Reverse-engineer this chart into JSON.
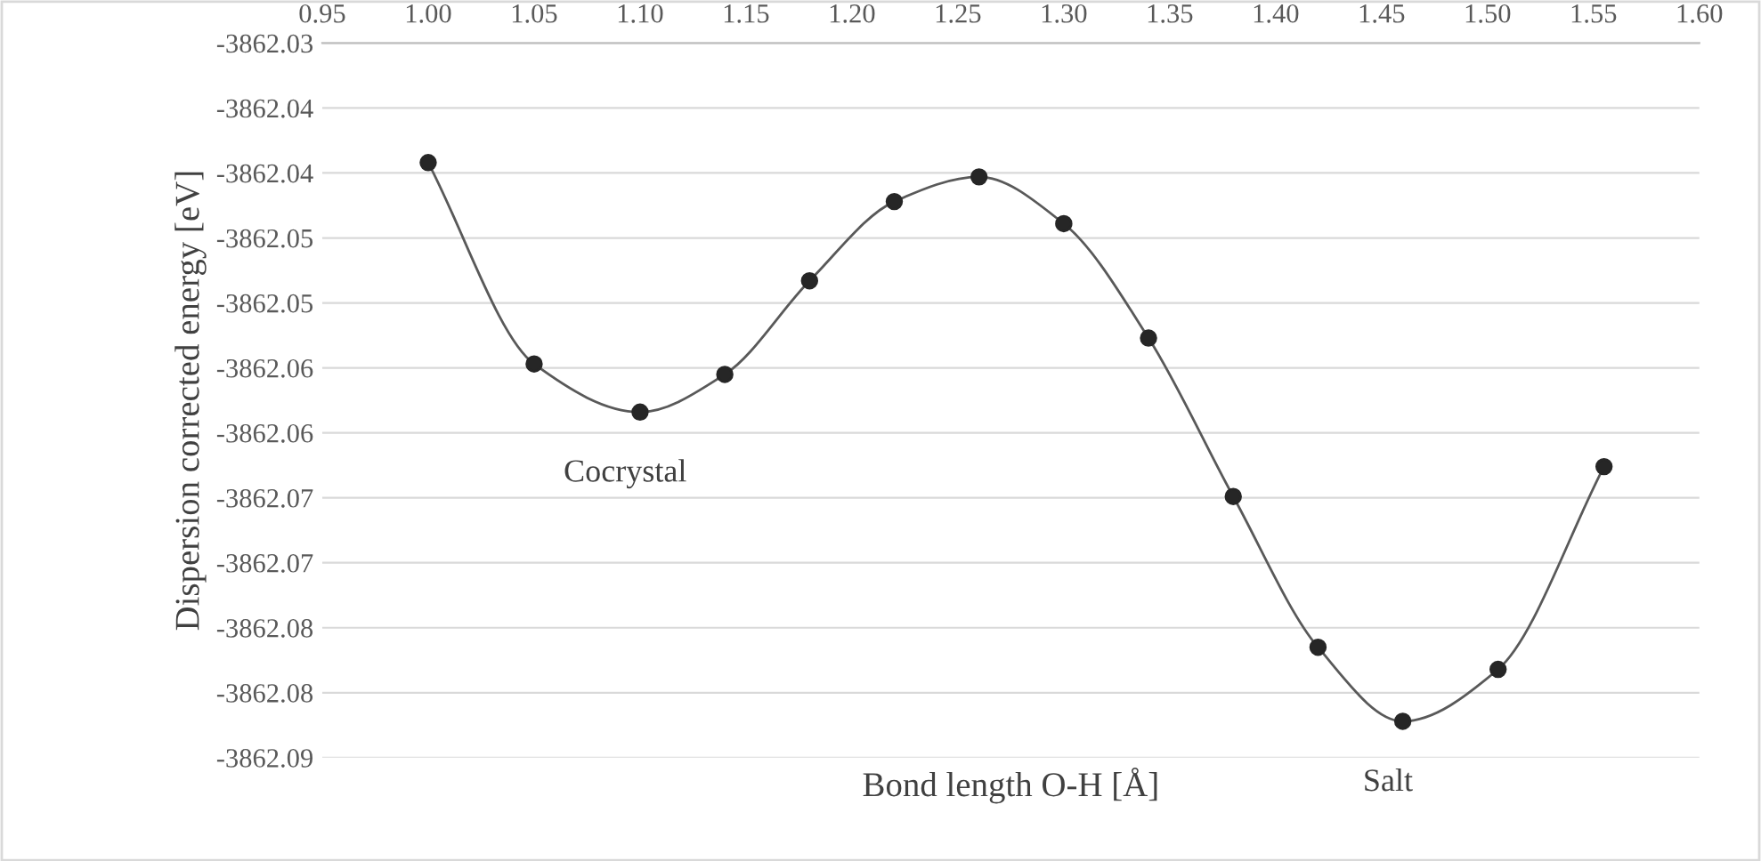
{
  "chart_data": {
    "type": "line",
    "xlabel": "Bond length O-H [Å]",
    "ylabel": "Dispersion corrected energy [eV]",
    "x": [
      1.0,
      1.05,
      1.1,
      1.14,
      1.18,
      1.22,
      1.26,
      1.3,
      1.34,
      1.38,
      1.42,
      1.46,
      1.505,
      1.555
    ],
    "series": [
      {
        "color": "#262626",
        "values": [
          -3862.0392,
          -3862.0547,
          -3862.0584,
          -3862.0555,
          -3862.0483,
          -3862.0422,
          -3862.0403,
          -3862.0439,
          -3862.0527,
          -3862.0649,
          -3862.0765,
          -3862.0822,
          -3862.0782,
          -3862.0626
        ]
      }
    ],
    "marker": "circle",
    "line_style": "solid",
    "grid": "y",
    "legend": false,
    "xlim": [
      0.95,
      1.6
    ],
    "xticks": [
      {
        "value": 0.95,
        "label": "0.95"
      },
      {
        "value": 1.0,
        "label": "1.00"
      },
      {
        "value": 1.05,
        "label": "1.05"
      },
      {
        "value": 1.1,
        "label": "1.10"
      },
      {
        "value": 1.15,
        "label": "1.15"
      },
      {
        "value": 1.2,
        "label": "1.20"
      },
      {
        "value": 1.25,
        "label": "1.25"
      },
      {
        "value": 1.3,
        "label": "1.30"
      },
      {
        "value": 1.35,
        "label": "1.35"
      },
      {
        "value": 1.4,
        "label": "1.40"
      },
      {
        "value": 1.45,
        "label": "1.45"
      },
      {
        "value": 1.5,
        "label": "1.50"
      },
      {
        "value": 1.55,
        "label": "1.55"
      },
      {
        "value": 1.6,
        "label": "1.60"
      }
    ],
    "ylim": [
      -3862.085,
      -3862.03
    ],
    "yticks": [
      {
        "value": -3862.03,
        "label": "-3862.03"
      },
      {
        "value": -3862.035,
        "label": "-3862.04"
      },
      {
        "value": -3862.04,
        "label": "-3862.04"
      },
      {
        "value": -3862.045,
        "label": "-3862.05"
      },
      {
        "value": -3862.05,
        "label": "-3862.05"
      },
      {
        "value": -3862.055,
        "label": "-3862.06"
      },
      {
        "value": -3862.06,
        "label": "-3862.06"
      },
      {
        "value": -3862.065,
        "label": "-3862.07"
      },
      {
        "value": -3862.07,
        "label": "-3862.07"
      },
      {
        "value": -3862.075,
        "label": "-3862.08"
      },
      {
        "value": -3862.08,
        "label": "-3862.08"
      },
      {
        "value": -3862.085,
        "label": "-3862.09"
      }
    ],
    "annotations": [
      {
        "text": "Cocrystal",
        "x": 1.1,
        "y": -3862.0584
      },
      {
        "text": "Salt",
        "x": 1.46,
        "y": -3862.0822
      }
    ]
  }
}
